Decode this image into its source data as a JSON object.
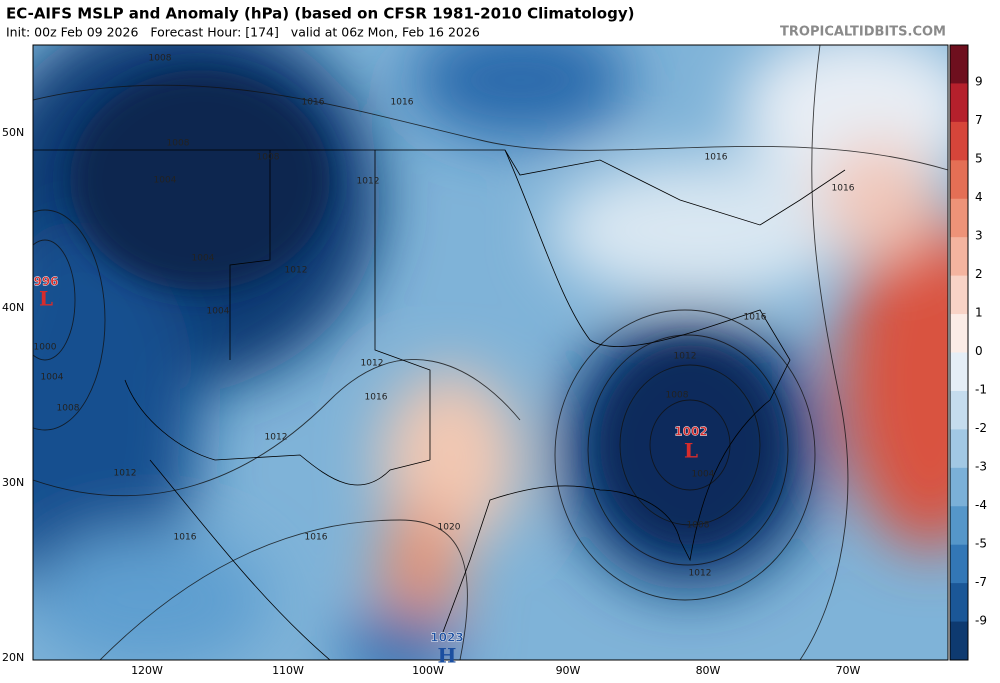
{
  "header": {
    "title": "EC-AIFS MSLP and Anomaly (hPa) (based on CFSR 1981-2010 Climatology)",
    "subtitle": "Init: 00z Feb 09 2026   Forecast Hour: [174]   valid at 06z Mon, Feb 16 2026",
    "site": "TROPICALTIDBITS.COM"
  },
  "map": {
    "lat_labels": [
      "50N",
      "40N",
      "30N",
      "20N"
    ],
    "lon_labels": [
      "120W",
      "110W",
      "100W",
      "90W",
      "80W",
      "70W"
    ],
    "centers": [
      {
        "value": "996",
        "symbol": "L"
      },
      {
        "value": "1002",
        "symbol": "L"
      },
      {
        "value": "1023",
        "symbol": "H"
      }
    ],
    "isobar_labels": [
      "1008",
      "1008",
      "1004",
      "1008",
      "1012",
      "1016",
      "1016",
      "1004",
      "1012",
      "1004",
      "1000",
      "1004",
      "1008",
      "1012",
      "1016",
      "1012",
      "1012",
      "1016",
      "1016",
      "1020",
      "1016",
      "1016",
      "1016",
      "1012",
      "1008",
      "1004",
      "1008",
      "1012"
    ]
  },
  "colorbar": {
    "ticks": [
      "9",
      "7",
      "5",
      "4",
      "3",
      "2",
      "1",
      "0",
      "-1",
      "-2",
      "-3",
      "-4",
      "-5",
      "-7",
      "-9"
    ]
  }
}
